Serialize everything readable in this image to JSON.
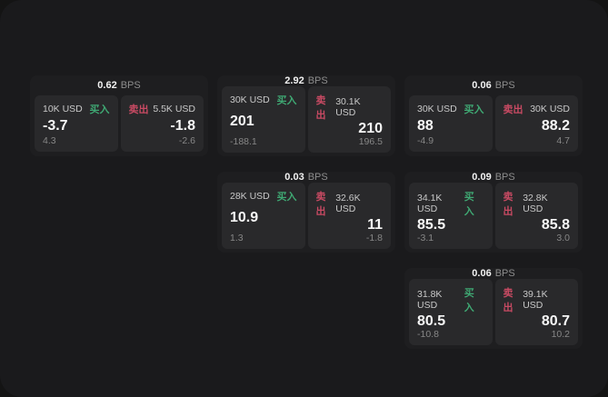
{
  "labels": {
    "bps_suffix": "BPS",
    "buy": "买入",
    "sell": "卖出"
  },
  "colors": {
    "buy_accent": "#3fa873",
    "sell_accent": "#c84a63",
    "window_bg": "#1a1a1c",
    "card_bg": "#1e1e20",
    "tile_bg": "#29292b"
  },
  "cards": [
    {
      "bps": "0.62",
      "buy": {
        "notional": "10K USD",
        "value": "-3.7",
        "delta": "4.3"
      },
      "sell": {
        "notional": "5.5K USD",
        "value": "-1.8",
        "delta": "-2.6"
      }
    },
    {
      "bps": "2.92",
      "buy": {
        "notional": "30K USD",
        "value": "201",
        "delta": "-188.1"
      },
      "sell": {
        "notional": "30.1K USD",
        "value": "210",
        "delta": "196.5"
      }
    },
    {
      "bps": "0.06",
      "buy": {
        "notional": "30K USD",
        "value": "88",
        "delta": "-4.9"
      },
      "sell": {
        "notional": "30K USD",
        "value": "88.2",
        "delta": "4.7"
      }
    },
    {
      "bps": "0.03",
      "buy": {
        "notional": "28K USD",
        "value": "10.9",
        "delta": "1.3"
      },
      "sell": {
        "notional": "32.6K USD",
        "value": "11",
        "delta": "-1.8"
      }
    },
    {
      "bps": "0.09",
      "buy": {
        "notional": "34.1K USD",
        "value": "85.5",
        "delta": "-3.1"
      },
      "sell": {
        "notional": "32.8K USD",
        "value": "85.8",
        "delta": "3.0"
      }
    },
    {
      "bps": "0.06",
      "buy": {
        "notional": "31.8K USD",
        "value": "80.5",
        "delta": "-10.8"
      },
      "sell": {
        "notional": "39.1K USD",
        "value": "80.7",
        "delta": "10.2"
      }
    }
  ]
}
